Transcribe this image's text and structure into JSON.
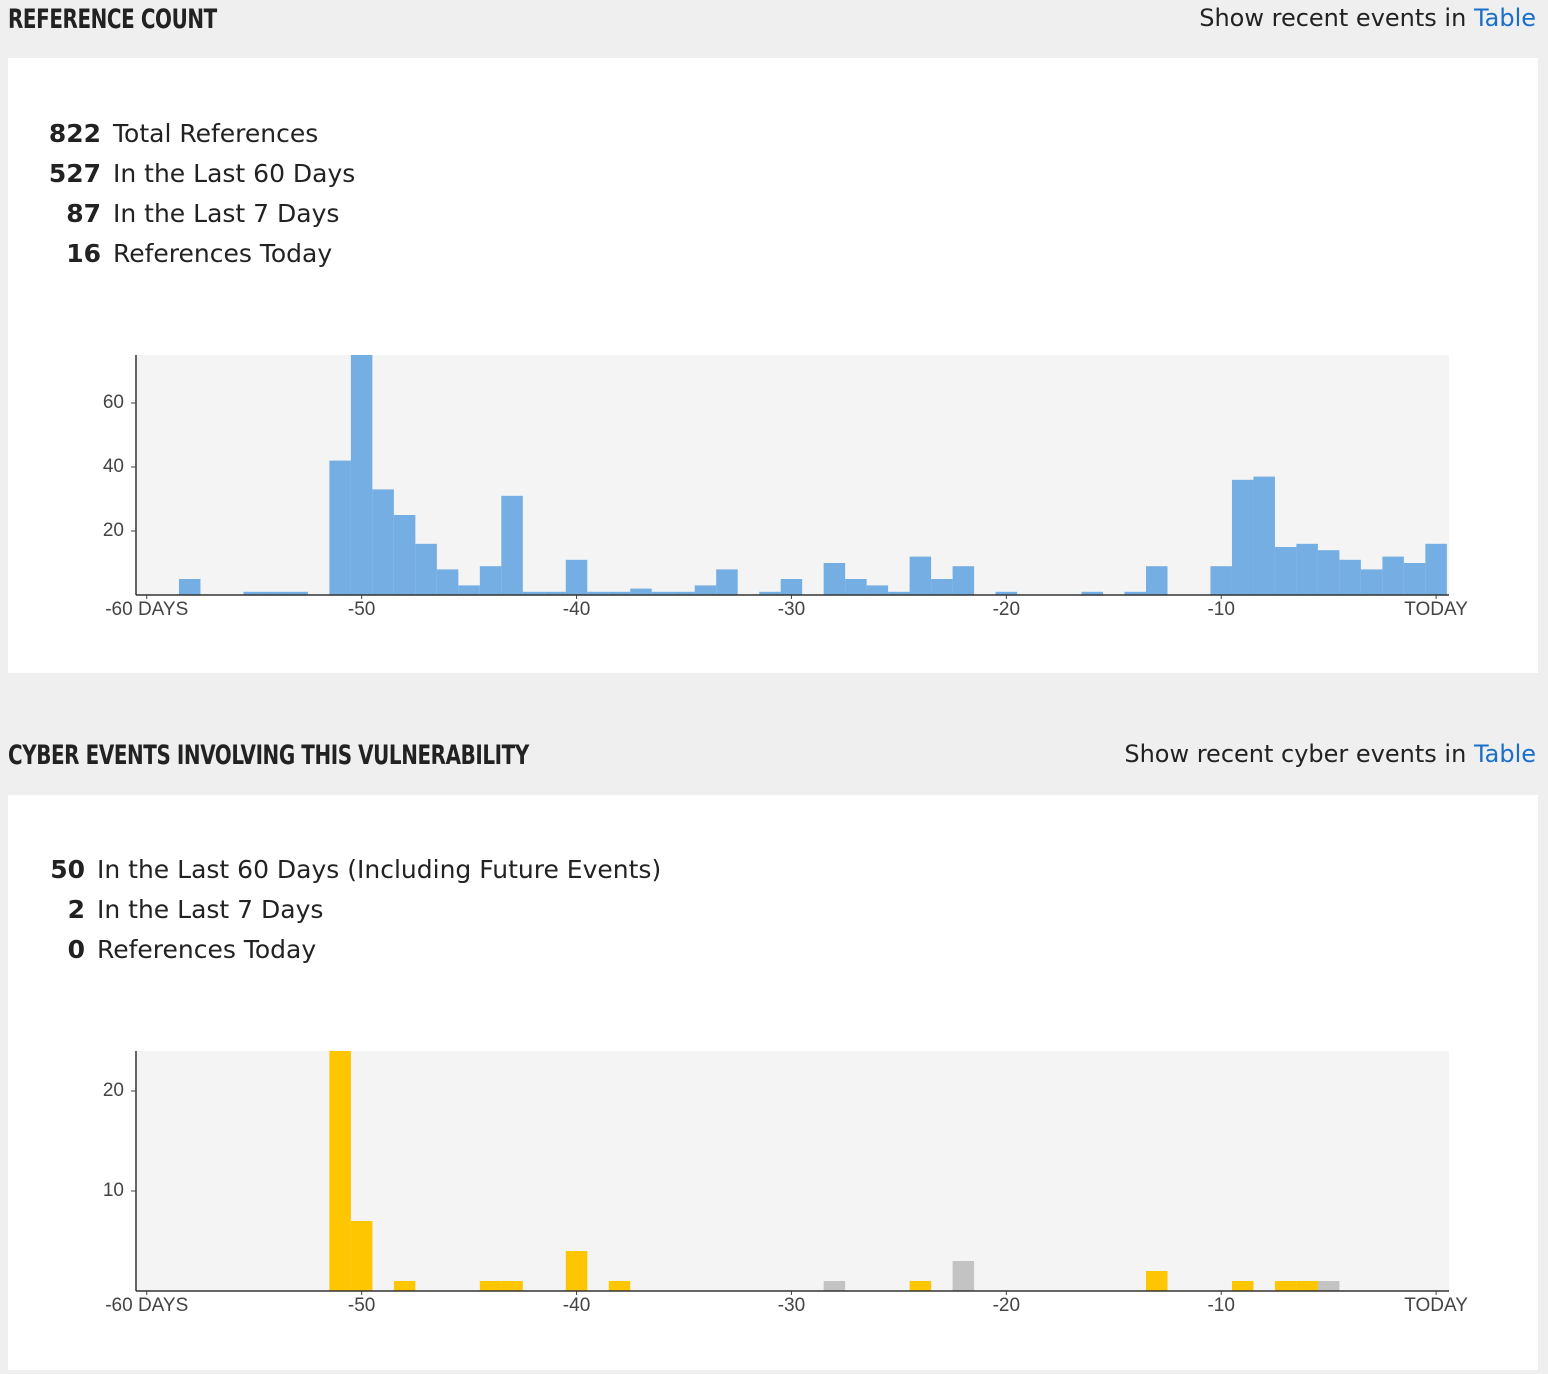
{
  "sections": [
    {
      "title": "REFERENCE COUNT",
      "link_text": "Show recent events in",
      "link": "Table",
      "stats": [
        {
          "value": 822,
          "label": "Total References"
        },
        {
          "value": 527,
          "label": "In the Last 60 Days"
        },
        {
          "value": 87,
          "label": "In the Last 7 Days"
        },
        {
          "value": 16,
          "label": "References Today"
        }
      ]
    },
    {
      "title": "CYBER EVENTS INVOLVING THIS VULNERABILITY",
      "link_text": "Show recent cyber events in",
      "link": "Table",
      "stats": [
        {
          "value": 50,
          "label": "In the Last 60 Days (Including Future Events)"
        },
        {
          "value": 2,
          "label": "In the Last 7 Days"
        },
        {
          "value": 0,
          "label": "References Today"
        }
      ]
    }
  ],
  "chart_data": [
    {
      "type": "bar",
      "x": [
        -60,
        -59,
        -58,
        -57,
        -56,
        -55,
        -54,
        -53,
        -52,
        -51,
        -50,
        -49,
        -48,
        -47,
        -46,
        -45,
        -44,
        -43,
        -42,
        -41,
        -40,
        -39,
        -38,
        -37,
        -36,
        -35,
        -34,
        -33,
        -32,
        -31,
        -30,
        -29,
        -28,
        -27,
        -26,
        -25,
        -24,
        -23,
        -22,
        -21,
        -20,
        -19,
        -18,
        -17,
        -16,
        -15,
        -14,
        -13,
        -12,
        -11,
        -10,
        -9,
        -8,
        -7,
        -6,
        -5,
        -4,
        -3,
        -2,
        -1,
        0
      ],
      "series": [
        {
          "color": "#74aee2",
          "values": [
            0,
            0,
            5,
            0,
            0,
            1,
            1,
            1,
            0,
            42,
            75,
            33,
            25,
            16,
            8,
            3,
            9,
            31,
            1,
            1,
            11,
            1,
            1,
            2,
            1,
            1,
            3,
            8,
            0,
            1,
            5,
            0,
            10,
            5,
            3,
            1,
            12,
            5,
            9,
            0,
            1,
            0,
            0,
            0,
            1,
            0,
            1,
            9,
            0,
            0,
            9,
            36,
            37,
            15,
            16,
            14,
            11,
            8,
            12,
            10,
            16
          ]
        }
      ],
      "xlim": [
        -60.5,
        0.6
      ],
      "ylim": [
        0,
        75
      ],
      "xticks": [
        {
          "value": -60,
          "label": "-60 DAYS"
        },
        -50,
        -40,
        -30,
        -20,
        -10,
        {
          "value": 0,
          "label": "TODAY"
        }
      ],
      "yticks": [
        20,
        40,
        60
      ]
    },
    {
      "type": "bar",
      "x": [
        -60,
        -59,
        -58,
        -57,
        -56,
        -55,
        -54,
        -53,
        -52,
        -51,
        -50,
        -49,
        -48,
        -47,
        -46,
        -45,
        -44,
        -43,
        -42,
        -41,
        -40,
        -39,
        -38,
        -37,
        -36,
        -35,
        -34,
        -33,
        -32,
        -31,
        -30,
        -29,
        -28,
        -27,
        -26,
        -25,
        -24,
        -23,
        -22,
        -21,
        -20,
        -19,
        -18,
        -17,
        -16,
        -15,
        -14,
        -13,
        -12,
        -11,
        -10,
        -9,
        -8,
        -7,
        -6,
        -5,
        -4,
        -3,
        -2,
        -1,
        0
      ],
      "series": [
        {
          "color": "#fec600",
          "values": [
            0,
            0,
            0,
            0,
            0,
            0,
            0,
            0,
            0,
            24,
            7,
            0,
            1,
            0,
            0,
            0,
            1,
            1,
            0,
            0,
            4,
            0,
            1,
            0,
            0,
            0,
            0,
            0,
            0,
            0,
            0,
            0,
            0,
            0,
            0,
            0,
            1,
            0,
            0,
            0,
            0,
            0,
            0,
            0,
            0,
            0,
            0,
            2,
            0,
            0,
            0,
            1,
            0,
            1,
            1,
            0,
            0,
            0,
            0,
            0,
            0
          ]
        },
        {
          "color": "#c3c3c3",
          "values": [
            0,
            0,
            0,
            0,
            0,
            0,
            0,
            0,
            0,
            0,
            0,
            0,
            0,
            0,
            0,
            0,
            0,
            0,
            0,
            0,
            0,
            0,
            0,
            0,
            0,
            0,
            0,
            0,
            0,
            0,
            0,
            0,
            1,
            0,
            0,
            0,
            0,
            0,
            3,
            0,
            0,
            0,
            0,
            0,
            0,
            0,
            0,
            0,
            0,
            0,
            0,
            0,
            0,
            0,
            0,
            1,
            0,
            0,
            0,
            0,
            0
          ]
        }
      ],
      "xlim": [
        -60.5,
        0.6
      ],
      "ylim": [
        0,
        24
      ],
      "xticks": [
        {
          "value": -60,
          "label": "-60 DAYS"
        },
        -50,
        -40,
        -30,
        -20,
        -10,
        {
          "value": 0,
          "label": "TODAY"
        }
      ],
      "yticks": [
        10,
        20
      ]
    }
  ]
}
